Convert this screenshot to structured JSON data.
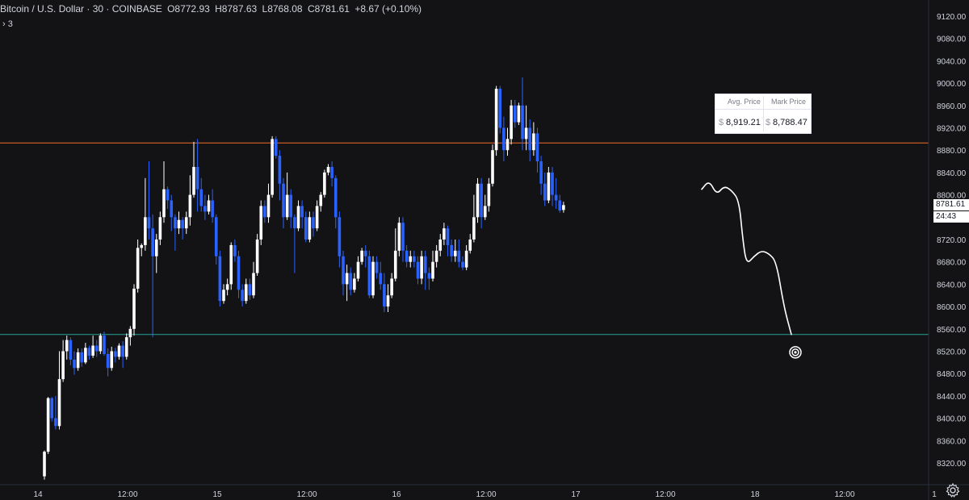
{
  "legend": {
    "symbol": "Bitcoin / U.S. Dollar · 30 · COINBASE",
    "open": "O8772.93",
    "high": "H8787.63",
    "low": "L8768.08",
    "close": "C8781.61",
    "change": "+8.67 (+0.10%)",
    "indicators_toggle": "› 3"
  },
  "position_box": {
    "avg_label": "Avg. Price",
    "mark_label": "Mark Price",
    "currency": "$",
    "avg_value": "8,919.21",
    "mark_value": "8,788.47"
  },
  "price_axis": {
    "last_price": "8781.61",
    "timer": "24:43"
  },
  "colors": {
    "background": "#131316",
    "up": "#ffffff",
    "down": "#2962ff",
    "resistance": "#f26c29",
    "support": "#26a69a",
    "axis_text": "#d1d4dc",
    "grid": "#1e1e24"
  },
  "chart_data": {
    "type": "candlestick",
    "title": "Bitcoin / U.S. Dollar · 30 · COINBASE",
    "y_ticks": [
      8320,
      8360,
      8400,
      8440,
      8480,
      8520,
      8560,
      8600,
      8640,
      8680,
      8720,
      8760,
      8800,
      8840,
      8880,
      8920,
      8960,
      9000,
      9040,
      9080,
      9120
    ],
    "ylim": [
      8290,
      9145
    ],
    "x_ticks": [
      {
        "label": "14",
        "bar": 0
      },
      {
        "label": "12:00",
        "bar": 24
      },
      {
        "label": "15",
        "bar": 48
      },
      {
        "label": "12:00",
        "bar": 72
      },
      {
        "label": "16",
        "bar": 96
      },
      {
        "label": "12:00",
        "bar": 120
      },
      {
        "label": "17",
        "bar": 144
      },
      {
        "label": "12:00",
        "bar": 168
      },
      {
        "label": "18",
        "bar": 192
      },
      {
        "label": "12:00",
        "bar": 216
      },
      {
        "label": "1",
        "bar": 240
      }
    ],
    "horizontal_lines": [
      {
        "name": "resistance",
        "price": 8893
      },
      {
        "name": "support",
        "price": 8550
      }
    ],
    "target_price": 8518,
    "projection": [
      [
        176,
        8810
      ],
      [
        178,
        8826
      ],
      [
        180,
        8800
      ],
      [
        182,
        8816
      ],
      [
        184,
        8808
      ],
      [
        186,
        8790
      ],
      [
        187,
        8720
      ],
      [
        188,
        8675
      ],
      [
        190,
        8690
      ],
      [
        192,
        8700
      ],
      [
        194,
        8695
      ],
      [
        196,
        8680
      ],
      [
        198,
        8600
      ],
      [
        200,
        8550
      ]
    ],
    "candles": [
      [
        8296,
        8340,
        8290,
        8342
      ],
      [
        8340,
        8436,
        8336,
        8438
      ],
      [
        8436,
        8400,
        8394,
        8438
      ],
      [
        8400,
        8386,
        8380,
        8440
      ],
      [
        8386,
        8470,
        8380,
        8520
      ],
      [
        8470,
        8520,
        8465,
        8540
      ],
      [
        8520,
        8540,
        8505,
        8548
      ],
      [
        8540,
        8505,
        8495,
        8545
      ],
      [
        8505,
        8490,
        8478,
        8520
      ],
      [
        8490,
        8518,
        8485,
        8525
      ],
      [
        8518,
        8500,
        8492,
        8525
      ],
      [
        8500,
        8526,
        8497,
        8535
      ],
      [
        8526,
        8512,
        8505,
        8530
      ],
      [
        8512,
        8530,
        8508,
        8548
      ],
      [
        8530,
        8520,
        8510,
        8540
      ],
      [
        8520,
        8548,
        8515,
        8552
      ],
      [
        8548,
        8515,
        8512,
        8555
      ],
      [
        8515,
        8490,
        8475,
        8525
      ],
      [
        8490,
        8520,
        8485,
        8528
      ],
      [
        8520,
        8510,
        8500,
        8526
      ],
      [
        8510,
        8530,
        8505,
        8534
      ],
      [
        8530,
        8510,
        8490,
        8538
      ],
      [
        8510,
        8545,
        8505,
        8552
      ],
      [
        8545,
        8560,
        8530,
        8565
      ],
      [
        8560,
        8632,
        8548,
        8640
      ],
      [
        8632,
        8705,
        8625,
        8720
      ],
      [
        8705,
        8710,
        8690,
        8713
      ],
      [
        8710,
        8760,
        8700,
        8830
      ],
      [
        8760,
        8740,
        8720,
        8860
      ],
      [
        8740,
        8690,
        8545,
        8765
      ],
      [
        8690,
        8720,
        8660,
        8730
      ],
      [
        8720,
        8760,
        8710,
        8770
      ],
      [
        8760,
        8810,
        8750,
        8860
      ],
      [
        8810,
        8790,
        8775,
        8815
      ],
      [
        8790,
        8760,
        8735,
        8800
      ],
      [
        8760,
        8740,
        8700,
        8765
      ],
      [
        8740,
        8755,
        8730,
        8770
      ],
      [
        8755,
        8740,
        8720,
        8760
      ],
      [
        8740,
        8760,
        8730,
        8770
      ],
      [
        8760,
        8800,
        8745,
        8835
      ],
      [
        8800,
        8850,
        8795,
        8895
      ],
      [
        8850,
        8810,
        8770,
        8900
      ],
      [
        8810,
        8780,
        8770,
        8830
      ],
      [
        8780,
        8770,
        8755,
        8800
      ],
      [
        8770,
        8790,
        8765,
        8800
      ],
      [
        8790,
        8760,
        8750,
        8810
      ],
      [
        8760,
        8690,
        8675,
        8765
      ],
      [
        8690,
        8610,
        8600,
        8700
      ],
      [
        8610,
        8630,
        8605,
        8640
      ],
      [
        8630,
        8640,
        8620,
        8650
      ],
      [
        8640,
        8710,
        8630,
        8715
      ],
      [
        8710,
        8690,
        8680,
        8720
      ],
      [
        8690,
        8630,
        8615,
        8700
      ],
      [
        8630,
        8610,
        8600,
        8640
      ],
      [
        8610,
        8640,
        8605,
        8650
      ],
      [
        8640,
        8620,
        8612,
        8650
      ],
      [
        8620,
        8660,
        8615,
        8680
      ],
      [
        8660,
        8720,
        8655,
        8730
      ],
      [
        8720,
        8780,
        8710,
        8790
      ],
      [
        8780,
        8760,
        8750,
        8790
      ],
      [
        8760,
        8800,
        8750,
        8820
      ],
      [
        8800,
        8900,
        8795,
        8905
      ],
      [
        8900,
        8870,
        8865,
        8905
      ],
      [
        8870,
        8820,
        8790,
        8880
      ],
      [
        8820,
        8760,
        8740,
        8830
      ],
      [
        8760,
        8800,
        8755,
        8840
      ],
      [
        8800,
        8760,
        8740,
        8810
      ],
      [
        8760,
        8740,
        8660,
        8765
      ],
      [
        8740,
        8780,
        8735,
        8790
      ],
      [
        8780,
        8760,
        8740,
        8790
      ],
      [
        8760,
        8720,
        8715,
        8770
      ],
      [
        8720,
        8760,
        8715,
        8770
      ],
      [
        8760,
        8740,
        8725,
        8770
      ],
      [
        8740,
        8780,
        8735,
        8790
      ],
      [
        8780,
        8800,
        8770,
        8805
      ],
      [
        8800,
        8840,
        8795,
        8845
      ],
      [
        8840,
        8850,
        8835,
        8855
      ],
      [
        8850,
        8830,
        8815,
        8860
      ],
      [
        8830,
        8760,
        8740,
        8835
      ],
      [
        8760,
        8690,
        8670,
        8770
      ],
      [
        8690,
        8640,
        8620,
        8700
      ],
      [
        8640,
        8660,
        8610,
        8675
      ],
      [
        8660,
        8630,
        8620,
        8670
      ],
      [
        8630,
        8650,
        8625,
        8660
      ],
      [
        8650,
        8680,
        8645,
        8690
      ],
      [
        8680,
        8700,
        8675,
        8705
      ],
      [
        8700,
        8690,
        8670,
        8710
      ],
      [
        8690,
        8620,
        8615,
        8700
      ],
      [
        8620,
        8680,
        8615,
        8690
      ],
      [
        8680,
        8660,
        8650,
        8690
      ],
      [
        8660,
        8640,
        8630,
        8680
      ],
      [
        8640,
        8600,
        8590,
        8660
      ],
      [
        8600,
        8620,
        8590,
        8640
      ],
      [
        8620,
        8650,
        8615,
        8660
      ],
      [
        8650,
        8700,
        8645,
        8740
      ],
      [
        8700,
        8750,
        8690,
        8760
      ],
      [
        8750,
        8700,
        8680,
        8760
      ],
      [
        8700,
        8680,
        8670,
        8710
      ],
      [
        8680,
        8690,
        8670,
        8700
      ],
      [
        8690,
        8680,
        8670,
        8700
      ],
      [
        8680,
        8650,
        8640,
        8690
      ],
      [
        8650,
        8690,
        8640,
        8700
      ],
      [
        8690,
        8660,
        8630,
        8700
      ],
      [
        8660,
        8650,
        8630,
        8670
      ],
      [
        8650,
        8680,
        8645,
        8700
      ],
      [
        8680,
        8700,
        8670,
        8710
      ],
      [
        8700,
        8720,
        8690,
        8730
      ],
      [
        8720,
        8740,
        8710,
        8750
      ],
      [
        8740,
        8710,
        8690,
        8745
      ],
      [
        8710,
        8690,
        8680,
        8720
      ],
      [
        8690,
        8700,
        8680,
        8720
      ],
      [
        8700,
        8680,
        8670,
        8720
      ],
      [
        8680,
        8670,
        8665,
        8690
      ],
      [
        8670,
        8700,
        8665,
        8710
      ],
      [
        8700,
        8720,
        8695,
        8730
      ],
      [
        8720,
        8760,
        8715,
        8800
      ],
      [
        8760,
        8820,
        8750,
        8830
      ],
      [
        8820,
        8760,
        8740,
        8830
      ],
      [
        8760,
        8780,
        8755,
        8800
      ],
      [
        8780,
        8820,
        8770,
        8830
      ],
      [
        8820,
        8880,
        8815,
        8890
      ],
      [
        8880,
        8990,
        8870,
        8995
      ],
      [
        8990,
        8920,
        8910,
        8995
      ],
      [
        8920,
        8880,
        8860,
        8940
      ],
      [
        8880,
        8900,
        8870,
        8920
      ],
      [
        8900,
        8960,
        8890,
        8970
      ],
      [
        8960,
        8930,
        8920,
        8970
      ],
      [
        8930,
        8960,
        8925,
        8965
      ],
      [
        8960,
        8900,
        8880,
        9010
      ],
      [
        8900,
        8920,
        8880,
        8960
      ],
      [
        8920,
        8880,
        8860,
        8935
      ],
      [
        8880,
        8910,
        8870,
        8930
      ],
      [
        8910,
        8860,
        8840,
        8920
      ],
      [
        8860,
        8820,
        8800,
        8870
      ],
      [
        8820,
        8790,
        8780,
        8840
      ],
      [
        8790,
        8840,
        8785,
        8850
      ],
      [
        8840,
        8800,
        8780,
        8850
      ],
      [
        8800,
        8790,
        8775,
        8830
      ],
      [
        8790,
        8772,
        8768,
        8800
      ],
      [
        8772.93,
        8781.61,
        8768.08,
        8787.63
      ]
    ]
  }
}
